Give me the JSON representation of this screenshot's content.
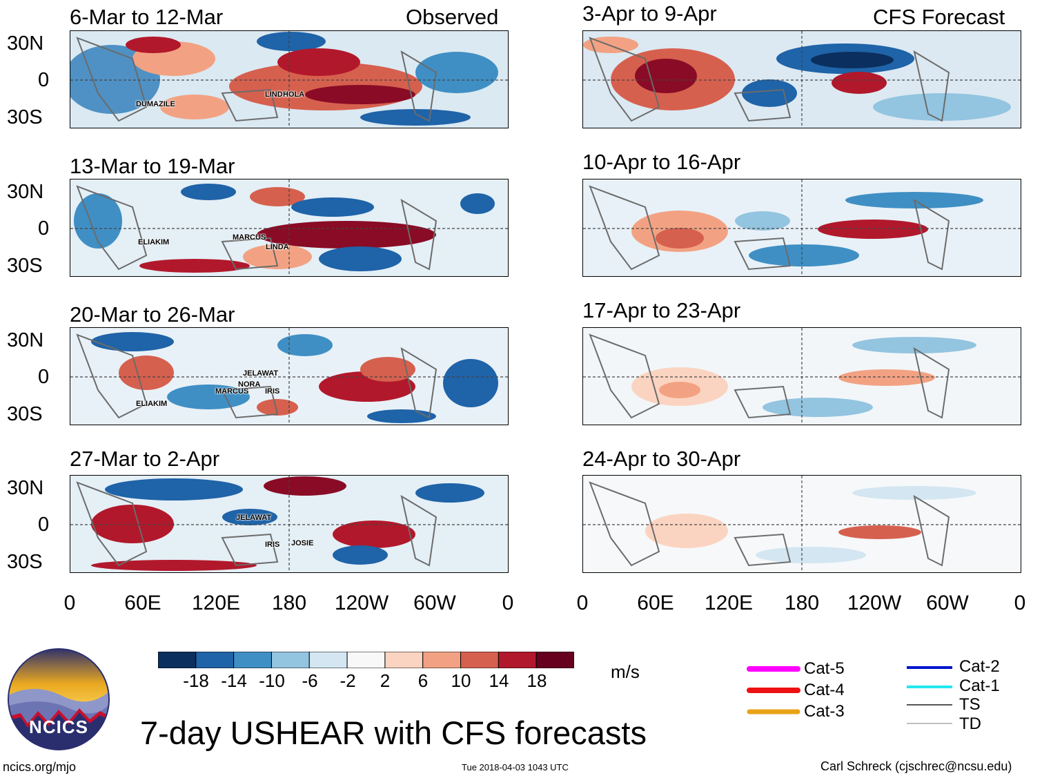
{
  "title": "7-day USHEAR with CFS forecasts",
  "units": "m/s",
  "logo": {
    "text": "NCICS"
  },
  "footer": {
    "left": "ncics.org/mjo",
    "center": "Tue 2018-04-03 1043 UTC",
    "right": "Carl Schreck (cjschrec@ncsu.edu)"
  },
  "column_titles": {
    "observed": "Observed",
    "forecast": "CFS Forecast"
  },
  "lat_labels": [
    "30N",
    "0",
    "30S"
  ],
  "lon_labels": [
    "0",
    "60E",
    "120E",
    "180",
    "120W",
    "60W",
    "0"
  ],
  "observed_panels": [
    {
      "period": "6-Mar to 12-Mar",
      "storms": [
        "DUMAZILE",
        "LINDA",
        "HOLA"
      ]
    },
    {
      "period": "13-Mar to 19-Mar",
      "storms": [
        "ELIAKIM",
        "MARCUS",
        "LINDA"
      ]
    },
    {
      "period": "20-Mar to 26-Mar",
      "storms": [
        "JELAWAT",
        "NORA",
        "MARCUS",
        "IRIS",
        "ELIAKIM"
      ]
    },
    {
      "period": "27-Mar to 2-Apr",
      "storms": [
        "JELAWAT",
        "IRIS",
        "JOSIE"
      ]
    }
  ],
  "forecast_panels": [
    {
      "period": "3-Apr to 9-Apr"
    },
    {
      "period": "10-Apr to 16-Apr"
    },
    {
      "period": "17-Apr to 23-Apr"
    },
    {
      "period": "24-Apr to 30-Apr"
    }
  ],
  "colorbar": {
    "colors": [
      "#0b2f5e",
      "#1f63a8",
      "#3f8fc4",
      "#93c4e0",
      "#d3e6f1",
      "#f8f8f8",
      "#fbd4c1",
      "#f2a283",
      "#d6604e",
      "#b2182b",
      "#67001f"
    ],
    "ticks": [
      "-18",
      "-14",
      "-10",
      "-6",
      "-2",
      "2",
      "6",
      "10",
      "14",
      "18"
    ]
  },
  "track_legend": [
    {
      "label": "Cat-5",
      "color": "#ff00ff"
    },
    {
      "label": "Cat-4",
      "color": "#ee1111"
    },
    {
      "label": "Cat-3",
      "color": "#e8a317"
    },
    {
      "label": "Cat-2",
      "color": "#0015cc"
    },
    {
      "label": "Cat-1",
      "color": "#22e8f0"
    },
    {
      "label": "TS",
      "color": "#555555"
    },
    {
      "label": "TD",
      "color": "#aaaaaa"
    }
  ],
  "colors": {
    "land_outline": "#6b6b6b",
    "frame": "#000000"
  }
}
